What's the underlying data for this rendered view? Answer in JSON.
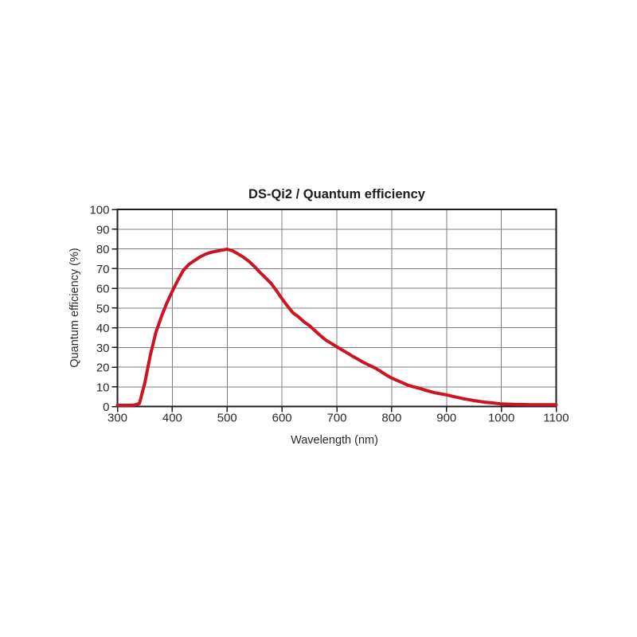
{
  "chart_data": {
    "type": "line",
    "title": "DS-Qi2 / Quantum efficiency",
    "xlabel": "Wavelength (nm)",
    "ylabel": "Quantum efficiency (%)",
    "xlim": [
      300,
      1100
    ],
    "ylim": [
      0,
      100
    ],
    "x_ticks": [
      300,
      400,
      500,
      600,
      700,
      800,
      900,
      1000,
      1100
    ],
    "y_ticks": [
      0,
      10,
      20,
      30,
      40,
      50,
      60,
      70,
      80,
      90,
      100
    ],
    "grid": true,
    "legend_position": "none",
    "series": [
      {
        "name": "DS-Qi2 quantum efficiency",
        "color": "#cc1422",
        "x": [
          300,
          310,
          320,
          330,
          340,
          350,
          360,
          370,
          380,
          390,
          400,
          410,
          420,
          430,
          440,
          450,
          460,
          470,
          480,
          490,
          500,
          510,
          520,
          530,
          540,
          550,
          560,
          570,
          580,
          590,
          600,
          610,
          620,
          630,
          640,
          650,
          660,
          670,
          680,
          690,
          700,
          710,
          720,
          730,
          740,
          750,
          760,
          770,
          780,
          790,
          800,
          810,
          820,
          830,
          840,
          850,
          860,
          870,
          880,
          890,
          900,
          910,
          920,
          930,
          940,
          950,
          960,
          970,
          980,
          990,
          1000,
          1010,
          1020,
          1030,
          1040,
          1050,
          1060,
          1070,
          1080,
          1090,
          1100
        ],
        "y": [
          0.6,
          0.6,
          0.6,
          0.7,
          1.5,
          12,
          26,
          37.5,
          45.5,
          52.5,
          58.5,
          64,
          69,
          72,
          74,
          75.8,
          77.2,
          78.2,
          78.8,
          79.3,
          79.8,
          79,
          77.4,
          75.7,
          73.6,
          71,
          68,
          65.3,
          62.5,
          58.8,
          54.7,
          51,
          47.5,
          45.5,
          43,
          41,
          38.5,
          36,
          33.7,
          32,
          30.3,
          28.6,
          27,
          25.3,
          23.7,
          22.2,
          20.8,
          19.5,
          17.8,
          16,
          14.4,
          13.2,
          12,
          10.8,
          10,
          9.3,
          8.4,
          7.6,
          6.9,
          6.4,
          5.9,
          5.2,
          4.6,
          4,
          3.5,
          3,
          2.6,
          2.2,
          1.9,
          1.6,
          1.3,
          1.2,
          1.1,
          1,
          1,
          0.9,
          0.9,
          0.9,
          0.9,
          0.9,
          0.9
        ]
      }
    ]
  },
  "style": {
    "background": "#ffffff",
    "grid_color": "#7f7f7f",
    "frame_color": "#1d1d1d",
    "tick_color": "#1d1d1d",
    "text_color": "#2a2a2a",
    "curve_color": "#cc1422"
  }
}
